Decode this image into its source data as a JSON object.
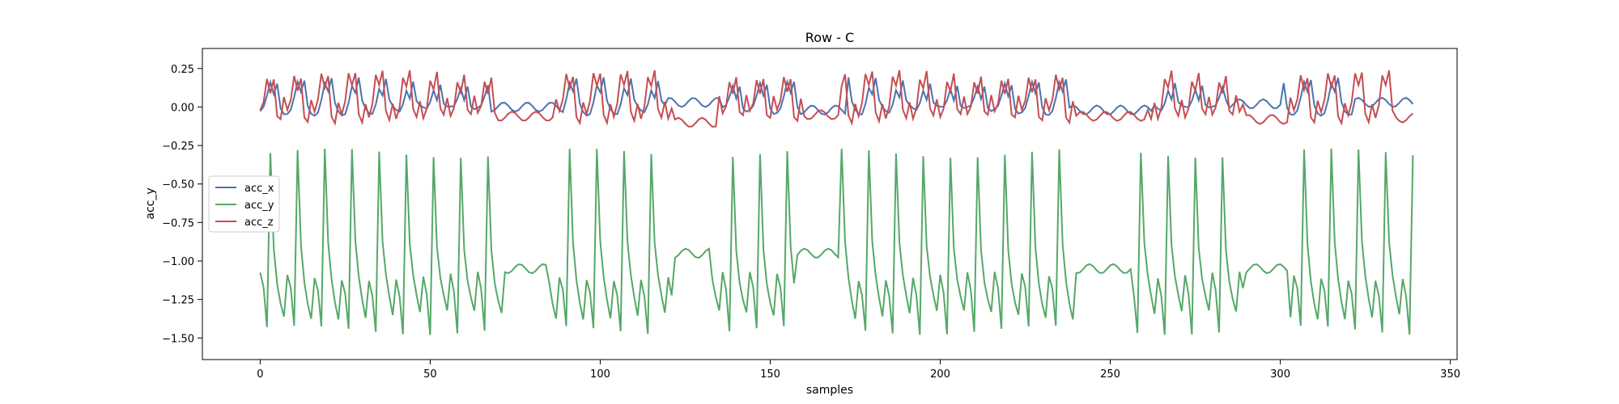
{
  "chart_data": {
    "type": "line",
    "title": "Row - C",
    "xlabel": "samples",
    "ylabel": "acc_y",
    "xlim": [
      -17,
      352
    ],
    "ylim": [
      -1.64,
      0.38
    ],
    "xticks": [
      0,
      50,
      100,
      150,
      200,
      250,
      300,
      350
    ],
    "yticks": [
      0.25,
      0.0,
      -0.25,
      -0.5,
      -0.75,
      -1.0,
      -1.25,
      -1.5
    ],
    "ytick_labels": [
      "0.25",
      "0.00",
      "−0.25",
      "−0.50",
      "−0.75",
      "−1.00",
      "−1.25",
      "−1.50"
    ],
    "legend_position": "center-left",
    "grid": false,
    "series": [
      {
        "name": "acc_x",
        "color": "#4c72b0",
        "period": 8,
        "n": 340,
        "pattern": [
          -0.03,
          -0.02,
          0.05,
          0.15,
          0.08,
          0.18,
          0.02,
          -0.02
        ],
        "amp_scale": 0.9,
        "quiet_ranges": [
          [
            68,
            88,
            0.0
          ],
          [
            120,
            135,
            0.03
          ],
          [
            160,
            172,
            -0.02
          ],
          [
            238,
            262,
            -0.02
          ],
          [
            285,
            300,
            0.02
          ],
          [
            322,
            340,
            0.03
          ]
        ]
      },
      {
        "name": "acc_y",
        "color": "#55a868",
        "period": 8,
        "n": 340,
        "pattern": [
          -1.1,
          -1.2,
          -1.45,
          -0.3,
          -0.9,
          -1.12,
          -1.25,
          -1.35
        ],
        "amp_scale": 1.0,
        "quiet_ranges": [
          [
            72,
            84,
            -1.05
          ],
          [
            122,
            132,
            -0.95
          ],
          [
            158,
            170,
            -0.95
          ],
          [
            240,
            256,
            -1.05
          ],
          [
            290,
            302,
            -1.05
          ]
        ]
      },
      {
        "name": "acc_z",
        "color": "#c44e52",
        "period": 8,
        "n": 340,
        "pattern": [
          -0.05,
          0.02,
          0.2,
          0.12,
          0.22,
          -0.04,
          -0.08,
          0.05
        ],
        "amp_scale": 0.95,
        "quiet_ranges": [
          [
            70,
            86,
            -0.06
          ],
          [
            122,
            134,
            -0.1
          ],
          [
            160,
            170,
            -0.05
          ],
          [
            240,
            260,
            -0.06
          ],
          [
            290,
            302,
            -0.08
          ],
          [
            334,
            340,
            -0.07
          ]
        ]
      }
    ]
  }
}
